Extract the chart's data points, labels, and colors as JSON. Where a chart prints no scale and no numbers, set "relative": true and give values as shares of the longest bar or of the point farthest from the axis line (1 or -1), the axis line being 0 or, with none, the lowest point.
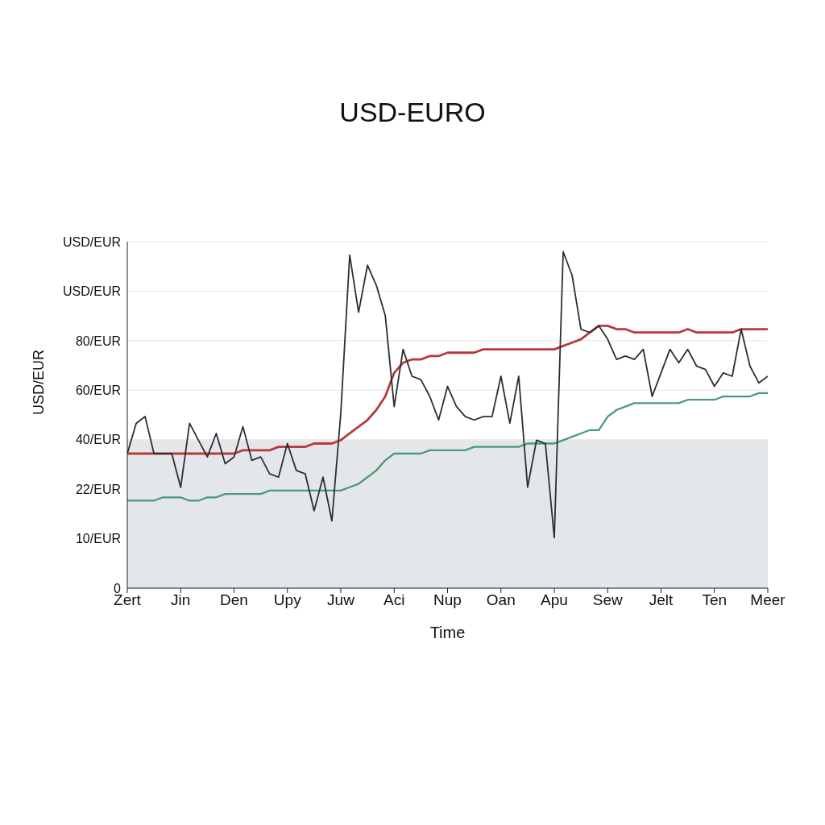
{
  "chart_data": {
    "type": "line",
    "title": "USD-EURO",
    "xlabel": "Time",
    "ylabel": "USD/EUR",
    "relative": true,
    "categories": [
      "Zert",
      null,
      null,
      null,
      null,
      null,
      "Jin",
      null,
      null,
      null,
      null,
      null,
      "Den",
      null,
      null,
      null,
      null,
      null,
      "Upy",
      null,
      null,
      null,
      null,
      null,
      "Juw",
      null,
      null,
      null,
      null,
      null,
      "Aci",
      null,
      null,
      null,
      null,
      null,
      "Nup",
      null,
      null,
      null,
      null,
      null,
      "Oan",
      null,
      null,
      null,
      null,
      null,
      "Apu",
      null,
      null,
      null,
      null,
      null,
      "Sew",
      null,
      null,
      null,
      null,
      null,
      "Jelt",
      null,
      null,
      null,
      null,
      null,
      "Ten",
      null,
      null,
      null,
      null,
      null,
      "Meer"
    ],
    "annotations": [
      "0",
      "10/EUR",
      "22/EUR",
      "40/EUR",
      "60/EUR",
      "80/EUR",
      "USD/EUR",
      "USD/EUR"
    ],
    "grid": "y",
    "bands": [
      {
        "axis": "y",
        "from": 0,
        "to": 0.44,
        "color": "#e4e7ea"
      }
    ],
    "series": [
      {
        "color": "#b83a3a",
        "values": [
          0.4,
          0.4,
          0.4,
          0.4,
          0.4,
          0.4,
          0.4,
          0.4,
          0.4,
          0.4,
          0.4,
          0.4,
          0.4,
          0.41,
          0.41,
          0.41,
          0.41,
          0.42,
          0.42,
          0.42,
          0.42,
          0.43,
          0.43,
          0.43,
          0.44,
          0.46,
          0.48,
          0.5,
          0.53,
          0.57,
          0.64,
          0.67,
          0.68,
          0.68,
          0.69,
          0.69,
          0.7,
          0.7,
          0.7,
          0.7,
          0.71,
          0.71,
          0.71,
          0.71,
          0.71,
          0.71,
          0.71,
          0.71,
          0.71,
          0.72,
          0.73,
          0.74,
          0.76,
          0.78,
          0.78,
          0.77,
          0.77,
          0.76,
          0.76,
          0.76,
          0.76,
          0.76,
          0.76,
          0.77,
          0.76,
          0.76,
          0.76,
          0.76,
          0.76,
          0.77,
          0.77,
          0.77,
          0.77
        ]
      },
      {
        "color": "#4a9a78",
        "values": [
          0.26,
          0.26,
          0.26,
          0.26,
          0.27,
          0.27,
          0.27,
          0.26,
          0.26,
          0.27,
          0.27,
          0.28,
          0.28,
          0.28,
          0.28,
          0.28,
          0.29,
          0.29,
          0.29,
          0.29,
          0.29,
          0.29,
          0.29,
          0.29,
          0.29,
          0.3,
          0.31,
          0.33,
          0.35,
          0.38,
          0.4,
          0.4,
          0.4,
          0.4,
          0.41,
          0.41,
          0.41,
          0.41,
          0.41,
          0.42,
          0.42,
          0.42,
          0.42,
          0.42,
          0.42,
          0.43,
          0.43,
          0.43,
          0.43,
          0.44,
          0.45,
          0.46,
          0.47,
          0.47,
          0.51,
          0.53,
          0.54,
          0.55,
          0.55,
          0.55,
          0.55,
          0.55,
          0.55,
          0.56,
          0.56,
          0.56,
          0.56,
          0.57,
          0.57,
          0.57,
          0.57,
          0.58,
          0.58
        ]
      },
      {
        "color": "#2b2f33",
        "values": [
          0.4,
          0.49,
          0.51,
          0.4,
          0.4,
          0.4,
          0.3,
          0.49,
          0.44,
          0.39,
          0.46,
          0.37,
          0.39,
          0.48,
          0.38,
          0.39,
          0.34,
          0.33,
          0.43,
          0.35,
          0.34,
          0.23,
          0.33,
          0.2,
          0.52,
          0.99,
          0.82,
          0.96,
          0.9,
          0.81,
          0.54,
          0.71,
          0.63,
          0.62,
          0.57,
          0.5,
          0.6,
          0.54,
          0.51,
          0.5,
          0.51,
          0.51,
          0.63,
          0.49,
          0.63,
          0.3,
          0.44,
          0.43,
          0.15,
          1.0,
          0.93,
          0.77,
          0.76,
          0.78,
          0.74,
          0.68,
          0.69,
          0.68,
          0.71,
          0.57,
          0.64,
          0.71,
          0.67,
          0.71,
          0.66,
          0.65,
          0.6,
          0.64,
          0.63,
          0.77,
          0.66,
          0.61,
          0.63
        ]
      }
    ]
  }
}
